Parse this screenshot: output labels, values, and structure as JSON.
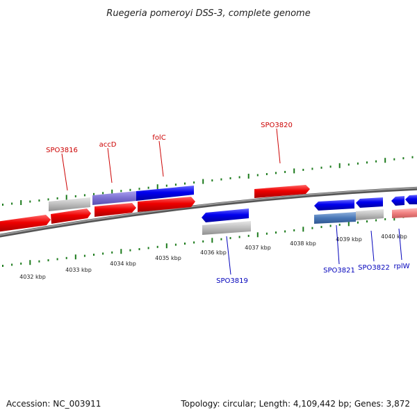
{
  "header": {
    "title": "Ruegeria pomeroyi DSS-3, complete genome"
  },
  "footer": {
    "accession": "Accession: NC_003911",
    "summary": "Topology: circular; Length: 4,109,442 bp; Genes: 3,872"
  },
  "colors": {
    "forward_gene": "#ee0000",
    "reverse_gene": "#0000ee",
    "forward_label": "#cc0000",
    "reverse_label": "#0000bb",
    "tick": "#1b7a1b",
    "backbone": "#777777",
    "rna": "#bbbbbb",
    "pseudo_red": "#f08080",
    "overlap_blue": "#4a78b8",
    "overlap_purple": "#7b6fd0"
  },
  "scale": {
    "tick_labels": [
      "4032 kbp",
      "4033 kbp",
      "4034 kbp",
      "4035 kbp",
      "4036 kbp",
      "4037 kbp",
      "4038 kbp",
      "4039 kbp",
      "4040 kbp"
    ]
  },
  "gene_labels": {
    "forward": [
      "SPO3816",
      "accD",
      "folC",
      "SPO3820"
    ],
    "reverse": [
      "SPO3819",
      "SPO3821",
      "SPO3822",
      "rplW"
    ]
  }
}
